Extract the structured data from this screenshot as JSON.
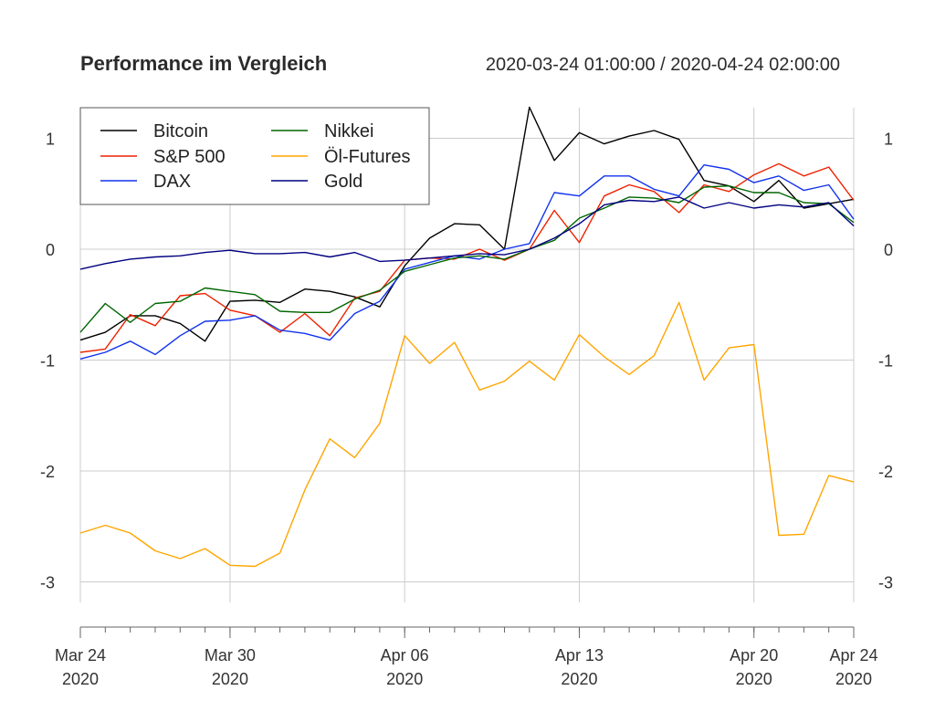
{
  "chart_data": {
    "type": "line",
    "title": "Performance im Vergleich",
    "subtitle": "2020-03-24 01:00:00 / 2020-04-24 02:00:00",
    "x_dates": [
      "2020-03-24",
      "2020-03-25",
      "2020-03-26",
      "2020-03-27",
      "2020-03-28",
      "2020-03-29",
      "2020-03-30",
      "2020-03-31",
      "2020-04-01",
      "2020-04-02",
      "2020-04-03",
      "2020-04-04",
      "2020-04-05",
      "2020-04-06",
      "2020-04-07",
      "2020-04-08",
      "2020-04-09",
      "2020-04-10",
      "2020-04-11",
      "2020-04-12",
      "2020-04-13",
      "2020-04-14",
      "2020-04-15",
      "2020-04-16",
      "2020-04-17",
      "2020-04-18",
      "2020-04-19",
      "2020-04-20",
      "2020-04-21",
      "2020-04-22",
      "2020-04-23",
      "2020-04-24"
    ],
    "x_ticks": [
      {
        "date": "2020-03-24",
        "label": "Mar 24",
        "year": "2020"
      },
      {
        "date": "2020-03-30",
        "label": "Mar 30",
        "year": "2020"
      },
      {
        "date": "2020-04-06",
        "label": "Apr 06",
        "year": "2020"
      },
      {
        "date": "2020-04-13",
        "label": "Apr 13",
        "year": "2020"
      },
      {
        "date": "2020-04-20",
        "label": "Apr 20",
        "year": "2020"
      },
      {
        "date": "2020-04-24",
        "label": "Apr 24",
        "year": "2020"
      }
    ],
    "y_ticks": [
      1,
      0,
      -1,
      -2,
      -3
    ],
    "y_tick_labels": [
      "1",
      "0",
      "-1",
      "-2",
      "-3"
    ],
    "ylim": [
      -3.3,
      1.3
    ],
    "grid": true,
    "legend_position": "top-left",
    "series": [
      {
        "name": "Bitcoin",
        "color": "#000000",
        "values": [
          -0.82,
          -0.75,
          -0.6,
          -0.6,
          -0.67,
          -0.83,
          -0.47,
          -0.46,
          -0.48,
          -0.36,
          -0.38,
          -0.43,
          -0.52,
          -0.15,
          0.1,
          0.23,
          0.22,
          0.0,
          1.28,
          0.8,
          1.05,
          0.95,
          1.02,
          1.07,
          0.99,
          0.62,
          0.57,
          0.43,
          0.62,
          0.37,
          0.41,
          0.45
        ]
      },
      {
        "name": "S&P 500",
        "color": "#ee2200",
        "values": [
          -0.93,
          -0.9,
          -0.59,
          -0.69,
          -0.42,
          -0.4,
          -0.55,
          -0.6,
          -0.75,
          -0.58,
          -0.78,
          -0.44,
          -0.38,
          -0.1,
          -0.08,
          -0.09,
          0.0,
          -0.1,
          0.0,
          0.35,
          0.06,
          0.48,
          0.58,
          0.52,
          0.33,
          0.58,
          0.52,
          0.67,
          0.77,
          0.66,
          0.74,
          0.44
        ]
      },
      {
        "name": "DAX",
        "color": "#1133ee",
        "values": [
          -0.99,
          -0.93,
          -0.83,
          -0.95,
          -0.78,
          -0.65,
          -0.64,
          -0.6,
          -0.73,
          -0.76,
          -0.82,
          -0.58,
          -0.47,
          -0.18,
          -0.12,
          -0.06,
          -0.09,
          0.0,
          0.05,
          0.51,
          0.48,
          0.66,
          0.66,
          0.54,
          0.48,
          0.76,
          0.72,
          0.6,
          0.66,
          0.53,
          0.58,
          0.27
        ]
      },
      {
        "name": "Nikkei",
        "color": "#006600",
        "values": [
          -0.75,
          -0.49,
          -0.66,
          -0.49,
          -0.47,
          -0.35,
          -0.38,
          -0.41,
          -0.56,
          -0.57,
          -0.57,
          -0.45,
          -0.37,
          -0.2,
          -0.14,
          -0.08,
          -0.06,
          -0.09,
          0.0,
          0.08,
          0.28,
          0.37,
          0.47,
          0.46,
          0.42,
          0.56,
          0.57,
          0.51,
          0.51,
          0.42,
          0.41,
          0.24
        ]
      },
      {
        "name": "Öl-Futures",
        "color": "#ffa500",
        "values": [
          -2.56,
          -2.49,
          -2.56,
          -2.72,
          -2.79,
          -2.7,
          -2.85,
          -2.86,
          -2.74,
          -2.17,
          -1.71,
          -1.88,
          -1.57,
          -0.78,
          -1.03,
          -0.84,
          -1.27,
          -1.19,
          -1.01,
          -1.18,
          -0.77,
          -0.97,
          -1.13,
          -0.96,
          -0.48,
          -1.18,
          -0.89,
          -0.86,
          -2.58,
          -2.57,
          -2.04,
          -2.1
        ]
      },
      {
        "name": "Gold",
        "color": "#000080",
        "values": [
          -0.18,
          -0.13,
          -0.09,
          -0.07,
          -0.06,
          -0.03,
          -0.01,
          -0.04,
          -0.04,
          -0.03,
          -0.07,
          -0.03,
          -0.11,
          -0.1,
          -0.08,
          -0.06,
          -0.04,
          -0.05,
          0.0,
          0.1,
          0.23,
          0.4,
          0.44,
          0.43,
          0.47,
          0.37,
          0.42,
          0.37,
          0.4,
          0.38,
          0.42,
          0.21
        ]
      }
    ],
    "legend": {
      "layout": "two-columns",
      "entries": [
        "Bitcoin",
        "S&P 500",
        "DAX",
        "Nikkei",
        "Öl-Futures",
        "Gold"
      ]
    }
  }
}
